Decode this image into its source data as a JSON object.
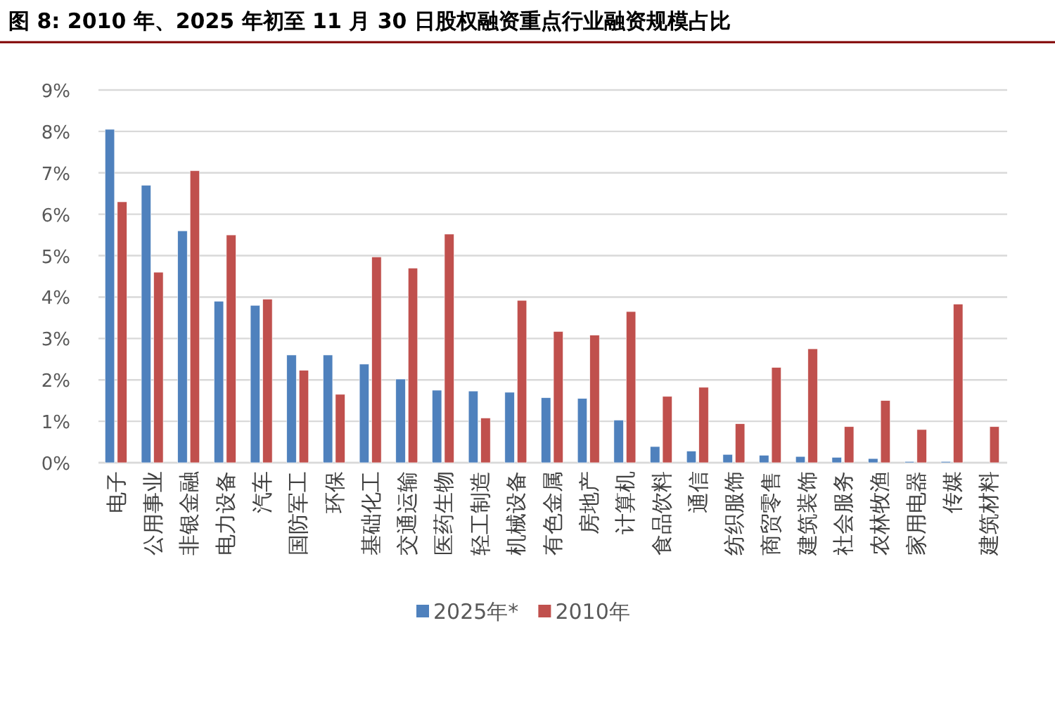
{
  "chart_data": {
    "type": "bar",
    "title": "图 8:  2010 年、2025 年初至 11 月 30 日股权融资重点行业融资规模占比",
    "categories": [
      "电子",
      "公用事业",
      "非银金融",
      "电力设备",
      "汽车",
      "国防军工",
      "环保",
      "基础化工",
      "交通运输",
      "医药生物",
      "轻工制造",
      "机械设备",
      "有色金属",
      "房地产",
      "计算机",
      "食品饮料",
      "通信",
      "纺织服饰",
      "商贸零售",
      "建筑装饰",
      "社会服务",
      "农林牧渔",
      "家用电器",
      "传媒",
      "建筑材料"
    ],
    "series": [
      {
        "name": "2025年*",
        "color": "#4f81bd",
        "values": [
          8.05,
          6.7,
          5.6,
          3.9,
          3.8,
          2.6,
          2.6,
          2.38,
          2.02,
          1.75,
          1.73,
          1.7,
          1.57,
          1.55,
          1.03,
          0.39,
          0.28,
          0.2,
          0.18,
          0.15,
          0.13,
          0.1,
          0.03,
          0.03,
          null
        ]
      },
      {
        "name": "2010年",
        "color": "#c0504d",
        "values": [
          6.3,
          4.6,
          7.05,
          5.5,
          3.95,
          2.23,
          1.65,
          4.97,
          4.7,
          5.52,
          1.08,
          3.92,
          3.17,
          3.08,
          3.65,
          1.6,
          1.82,
          0.94,
          2.3,
          2.75,
          0.87,
          1.5,
          0.8,
          3.83,
          0.87
        ]
      }
    ],
    "ylim": [
      0,
      9
    ],
    "yticks": [
      {
        "value": 0,
        "label": "0%"
      },
      {
        "value": 1,
        "label": "1%"
      },
      {
        "value": 2,
        "label": "2%"
      },
      {
        "value": 3,
        "label": "3%"
      },
      {
        "value": 4,
        "label": "4%"
      },
      {
        "value": 5,
        "label": "5%"
      },
      {
        "value": 6,
        "label": "6%"
      },
      {
        "value": 7,
        "label": "7%"
      },
      {
        "value": 8,
        "label": "8%"
      },
      {
        "value": 9,
        "label": "9%"
      }
    ],
    "grid": "y",
    "legend": "bottom"
  }
}
